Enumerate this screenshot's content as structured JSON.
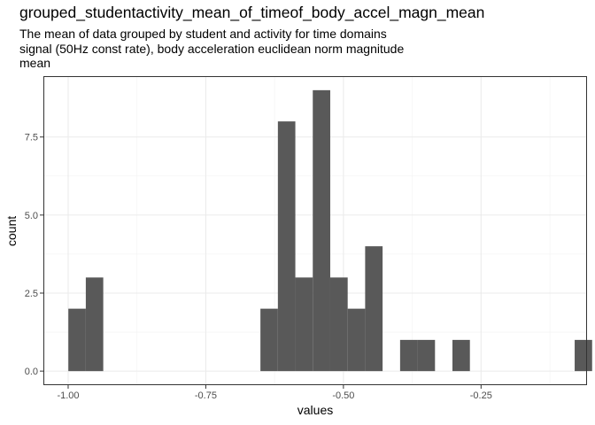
{
  "chart_data": {
    "type": "bar",
    "title": "grouped_studentactivity_mean_of_timeof_body_accel_magn_mean",
    "subtitle": "The mean of data grouped by student and activity for time domains\nsignal (50Hz const rate), body acceleration euclidean norm magnitude\nmean",
    "xlabel": "values",
    "ylabel": "count",
    "xlim": [
      -1.045,
      -0.0575
    ],
    "ylim": [
      -0.45,
      9.45
    ],
    "xticks": [
      -1.0,
      -0.75,
      -0.5,
      -0.25
    ],
    "xtick_labels": [
      "-1.00",
      "-0.75",
      "-0.50",
      "-0.25"
    ],
    "yticks": [
      0,
      2.5,
      5.0,
      7.5
    ],
    "ytick_labels": [
      "0.0",
      "2.5",
      "5.0",
      "7.5"
    ],
    "bin_width": 0.0317,
    "bins": [
      {
        "x": -0.9838,
        "count": 2
      },
      {
        "x": -0.9521,
        "count": 3
      },
      {
        "x": -0.6349,
        "count": 2
      },
      {
        "x": -0.6032,
        "count": 8
      },
      {
        "x": -0.5715,
        "count": 3
      },
      {
        "x": -0.5398,
        "count": 9
      },
      {
        "x": -0.5081,
        "count": 3
      },
      {
        "x": -0.4764,
        "count": 2
      },
      {
        "x": -0.4447,
        "count": 4
      },
      {
        "x": -0.3812,
        "count": 1
      },
      {
        "x": -0.3495,
        "count": 1
      },
      {
        "x": -0.2861,
        "count": 1
      },
      {
        "x": -0.0641,
        "count": 1
      }
    ],
    "bar_color": "#595959",
    "grid": true
  }
}
